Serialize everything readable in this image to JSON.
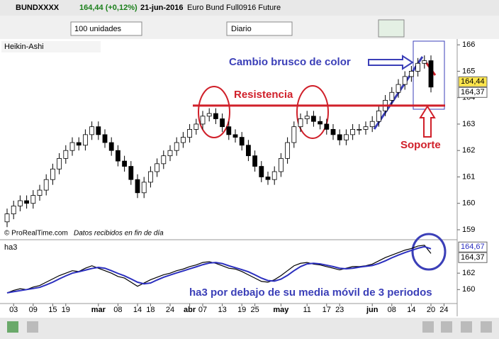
{
  "chart_data": {
    "type": "candlestick",
    "instrument": "BUNDXXXX",
    "quote": "164,44 (+0,12%)",
    "date": "21-jun-2016",
    "contract": "Euro Bund Full0916 Future",
    "quantity": "100 unidades",
    "period": "Diario",
    "style": "Heikin-Ashi",
    "credit": "© ProRealTime.com",
    "credit_note": "Datos recibidos en fin de día",
    "up_color": "#ffffff",
    "down_color": "#000000",
    "categories": [
      null,
      "03",
      null,
      null,
      "09",
      null,
      null,
      "15",
      null,
      "19",
      null,
      null,
      null,
      null,
      "mar",
      null,
      null,
      "08",
      null,
      null,
      "14",
      null,
      "18",
      null,
      null,
      "24",
      null,
      null,
      "abr",
      null,
      "07",
      null,
      null,
      "13",
      null,
      null,
      "19",
      null,
      "25",
      null,
      null,
      null,
      "may",
      null,
      null,
      null,
      "11",
      null,
      null,
      "17",
      null,
      "23",
      null,
      null,
      null,
      null,
      "jun",
      null,
      null,
      "08",
      null,
      null,
      "14",
      null,
      null,
      "20",
      null,
      "24"
    ],
    "open": [
      159.3,
      159.6,
      159.9,
      160.1,
      160.0,
      160.3,
      160.5,
      160.9,
      161.3,
      161.7,
      162.0,
      162.3,
      162.2,
      162.6,
      162.9,
      162.6,
      162.3,
      162.0,
      161.6,
      161.4,
      160.9,
      160.4,
      160.8,
      161.2,
      161.5,
      161.8,
      162.0,
      162.3,
      162.5,
      162.8,
      163.0,
      163.3,
      163.4,
      163.2,
      162.9,
      162.6,
      162.5,
      162.2,
      161.8,
      161.4,
      161.0,
      160.9,
      161.2,
      161.7,
      162.3,
      162.9,
      163.2,
      163.3,
      163.1,
      163.0,
      162.8,
      162.6,
      162.4,
      162.6,
      162.8,
      162.8,
      162.9,
      163.1,
      163.5,
      163.9,
      164.2,
      164.5,
      164.8,
      165.0,
      165.3,
      165.4,
      null,
      null
    ],
    "high": [
      159.8,
      160.1,
      160.3,
      160.3,
      160.5,
      160.7,
      161.1,
      161.5,
      161.9,
      162.2,
      162.5,
      162.5,
      162.8,
      163.1,
      163.1,
      162.8,
      162.5,
      162.2,
      161.8,
      161.6,
      161.1,
      161.0,
      161.4,
      161.7,
      162.0,
      162.2,
      162.5,
      162.7,
      163.0,
      163.2,
      163.5,
      163.6,
      163.6,
      163.4,
      163.1,
      162.8,
      162.7,
      162.4,
      162.0,
      161.6,
      161.2,
      161.4,
      161.9,
      162.5,
      163.1,
      163.4,
      163.5,
      163.5,
      163.3,
      163.2,
      163.0,
      162.8,
      162.8,
      163.0,
      163.0,
      163.1,
      163.3,
      163.7,
      164.1,
      164.4,
      164.7,
      165.0,
      165.2,
      165.5,
      165.6,
      165.6,
      null,
      null
    ],
    "low": [
      159.1,
      159.4,
      159.7,
      159.8,
      159.8,
      160.1,
      160.3,
      160.7,
      161.1,
      161.5,
      161.8,
      162.0,
      162.0,
      162.4,
      162.4,
      162.1,
      161.8,
      161.4,
      161.2,
      160.7,
      160.2,
      160.2,
      160.6,
      161.0,
      161.3,
      161.6,
      161.8,
      162.1,
      162.3,
      162.6,
      162.8,
      163.1,
      163.0,
      162.7,
      162.4,
      162.3,
      162.0,
      161.6,
      161.2,
      160.8,
      160.7,
      160.7,
      161.0,
      161.5,
      162.1,
      162.7,
      163.0,
      162.9,
      162.8,
      162.6,
      162.4,
      162.2,
      162.2,
      162.4,
      162.6,
      162.6,
      162.7,
      162.9,
      163.3,
      163.7,
      164.0,
      164.3,
      164.6,
      164.8,
      165.1,
      164.2,
      null,
      null
    ],
    "close": [
      159.6,
      159.9,
      160.1,
      160.0,
      160.3,
      160.5,
      160.9,
      161.3,
      161.7,
      162.0,
      162.3,
      162.2,
      162.6,
      162.9,
      162.6,
      162.3,
      162.0,
      161.6,
      161.4,
      160.9,
      160.4,
      160.8,
      161.2,
      161.5,
      161.8,
      162.0,
      162.3,
      162.5,
      162.8,
      163.0,
      163.3,
      163.4,
      163.2,
      162.9,
      162.6,
      162.5,
      162.2,
      161.8,
      161.4,
      161.0,
      160.9,
      161.2,
      161.7,
      162.3,
      162.9,
      163.2,
      163.3,
      163.1,
      163.0,
      162.8,
      162.6,
      162.4,
      162.6,
      162.8,
      162.8,
      162.9,
      163.1,
      163.5,
      163.9,
      164.2,
      164.5,
      164.8,
      165.0,
      165.3,
      165.4,
      164.4,
      null,
      null
    ],
    "ylim": [
      158.65,
      166.22
    ],
    "yticks": [
      159,
      160,
      161,
      162,
      163,
      164,
      165,
      166
    ],
    "price_labels": [
      {
        "value": 164.44,
        "label": "164,44"
      },
      {
        "value": 164.37,
        "label": "164,37"
      }
    ],
    "annotations": [
      {
        "text": "Cambio brusco de color",
        "color": "#3b3fb8"
      },
      {
        "text": "Resistencia",
        "color": "#d0202a",
        "value": 163.7
      },
      {
        "text": "Soporte",
        "color": "#d0202a"
      },
      {
        "text": "ha3 por debajo de su media móvil de 3 periodos",
        "color": "#3b3fb8"
      }
    ],
    "indicator": {
      "type": "line",
      "ylim": [
        158.3,
        165.9
      ],
      "yticks": [
        160,
        162
      ],
      "price_labels": [
        {
          "value": 164.67,
          "label": "164,67"
        },
        {
          "value": 164.37,
          "label": "164,37"
        }
      ],
      "series": [
        {
          "name": "ha3",
          "color": "#000000",
          "values": [
            159.6,
            159.9,
            160.1,
            160.0,
            160.3,
            160.5,
            160.9,
            161.3,
            161.7,
            162.0,
            162.3,
            162.2,
            162.6,
            162.9,
            162.6,
            162.3,
            162.0,
            161.6,
            161.4,
            160.9,
            160.4,
            160.8,
            161.2,
            161.5,
            161.8,
            162.0,
            162.3,
            162.5,
            162.8,
            163.0,
            163.3,
            163.4,
            163.2,
            162.9,
            162.6,
            162.5,
            162.2,
            161.8,
            161.4,
            161.0,
            160.9,
            161.2,
            161.7,
            162.3,
            162.9,
            163.2,
            163.3,
            163.1,
            163.0,
            162.8,
            162.6,
            162.4,
            162.6,
            162.8,
            162.8,
            162.9,
            163.1,
            163.5,
            163.9,
            164.2,
            164.5,
            164.8,
            165.0,
            165.3,
            165.4,
            164.4,
            null,
            null
          ]
        },
        {
          "color": "#2b2fbf",
          "values": [
            159.6,
            159.75,
            159.87,
            160.0,
            160.13,
            160.27,
            160.57,
            160.9,
            161.3,
            161.67,
            162.0,
            162.17,
            162.37,
            162.57,
            162.7,
            162.6,
            162.3,
            161.97,
            161.67,
            161.3,
            160.9,
            160.7,
            160.8,
            161.17,
            161.5,
            161.77,
            162.03,
            162.27,
            162.53,
            162.77,
            163.03,
            163.23,
            163.3,
            163.17,
            162.9,
            162.67,
            162.43,
            162.17,
            161.8,
            161.4,
            161.1,
            161.03,
            161.27,
            161.73,
            162.3,
            162.8,
            163.13,
            163.2,
            163.13,
            162.97,
            162.8,
            162.6,
            162.53,
            162.6,
            162.73,
            162.83,
            162.93,
            163.17,
            163.5,
            163.87,
            164.2,
            164.5,
            164.77,
            165.03,
            165.23,
            164.97,
            null,
            null
          ]
        }
      ]
    }
  }
}
